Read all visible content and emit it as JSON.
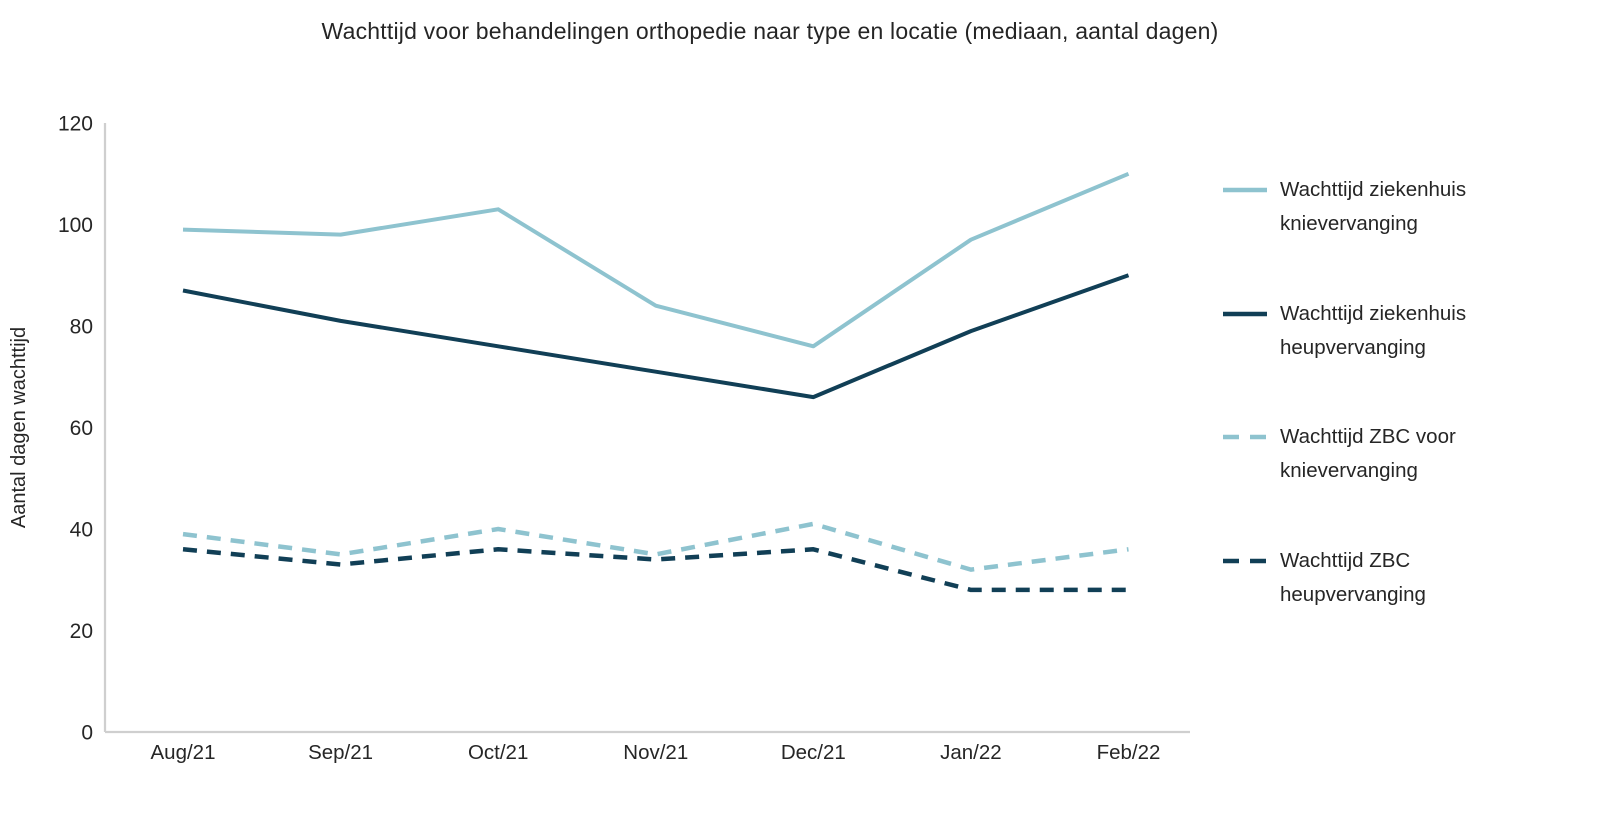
{
  "title": "Wachttijd voor behandelingen orthopedie naar type en locatie (mediaan, aantal dagen)",
  "chart_data": {
    "type": "line",
    "categories": [
      "Aug/21",
      "Sep/21",
      "Oct/21",
      "Nov/21",
      "Dec/21",
      "Jan/22",
      "Feb/22"
    ],
    "series": [
      {
        "name": "Wachttijd ziekenhuis knievervanging",
        "values": [
          99,
          98,
          103,
          84,
          76,
          97,
          110
        ],
        "color": "#8EC3CF",
        "style": "solid"
      },
      {
        "name": "Wachttijd ziekenhuis heupvervanging",
        "values": [
          87,
          81,
          76,
          71,
          66,
          79,
          90
        ],
        "color": "#113F56",
        "style": "solid"
      },
      {
        "name": "Wachttijd ZBC voor knievervanging",
        "values": [
          39,
          35,
          40,
          35,
          41,
          32,
          36
        ],
        "color": "#8EC3CF",
        "style": "dashed"
      },
      {
        "name": "Wachttijd ZBC heupvervanging",
        "values": [
          36,
          33,
          36,
          34,
          36,
          28,
          28
        ],
        "color": "#113F56",
        "style": "dashed"
      }
    ],
    "xlabel": "",
    "ylabel": "Aantal dagen wachttijd",
    "ylim": [
      0,
      120
    ],
    "yticks": [
      0,
      20,
      40,
      60,
      80,
      100,
      120
    ],
    "grid": false,
    "legend_position": "right",
    "axis_color": "#cfcfcf",
    "text_color": "#262626",
    "background": "#ffffff"
  }
}
